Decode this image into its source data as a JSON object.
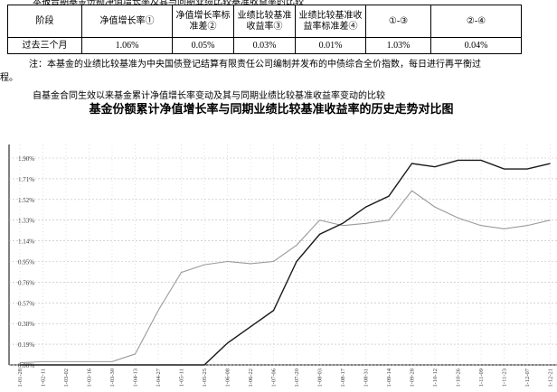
{
  "document": {
    "caption": "本报告期基金份额净值增长率及其与同期业绩比较基准收益率的比较",
    "table": {
      "header": [
        "阶段",
        "净值增长率①",
        "净值增长率标准差②",
        "业绩比较基准收益率③",
        "业绩比较基准收益率标准差④",
        "①-③",
        "②-④"
      ],
      "rows": [
        [
          "过去三个月",
          "1.06%",
          "0.05%",
          "0.03%",
          "0.01%",
          "1.03%",
          "0.04%"
        ]
      ]
    },
    "note": "注：本基金的业绩比较基准为中央国债登记结算有限责任公司编制并发布的中债综合全价指数，每日进行再平衡过",
    "note_tail": "程。",
    "section": "自基金合同生效以来基金累计净值增长率变动及其与同期业绩比较基准收益率变动的比较"
  },
  "chart_data": {
    "type": "line",
    "title": "基金份额累计净值增长率与同期业绩比较基准收益率的历史走势对比图",
    "categories": [
      "1-01-28",
      "1-02-11",
      "1-03-02",
      "1-03-16",
      "1-03-30",
      "1-04-13",
      "1-04-27",
      "1-05-11",
      "1-05-25",
      "1-06-08",
      "1-06-22",
      "1-07-06",
      "1-07-20",
      "1-08-03",
      "1-08-17",
      "1-08-31",
      "1-09-14",
      "1-09-28",
      "1-10-12",
      "1-10-26",
      "1-11-09",
      "1-11-23",
      "1-12-07",
      "1-12-21"
    ],
    "series": [
      {
        "color": "#9a9a9a",
        "values": [
          0.02,
          0.03,
          0.03,
          0.03,
          0.03,
          0.1,
          0.5,
          0.85,
          0.92,
          0.95,
          0.93,
          0.95,
          1.1,
          1.33,
          1.28,
          1.3,
          1.33,
          1.6,
          1.45,
          1.35,
          1.28,
          1.25,
          1.28,
          1.33
        ]
      },
      {
        "color": "#1a1a1a",
        "values": [
          0,
          0,
          0,
          0,
          0,
          0,
          0,
          0,
          0,
          0.2,
          0.35,
          0.5,
          0.95,
          1.2,
          1.3,
          1.45,
          1.55,
          1.85,
          1.82,
          1.88,
          1.88,
          1.8,
          1.8,
          1.85
        ]
      }
    ],
    "ylim": [
      0,
      1.9
    ],
    "yticks": [
      {
        "value": 0,
        "label": "0.00%"
      },
      {
        "value": 0.19,
        "label": "0.19%"
      },
      {
        "value": 0.38,
        "label": "0.38%"
      },
      {
        "value": 0.57,
        "label": "0.57%"
      },
      {
        "value": 0.76,
        "label": "0.76%"
      },
      {
        "value": 0.95,
        "label": "0.95%"
      },
      {
        "value": 1.14,
        "label": "1.14%"
      },
      {
        "value": 1.33,
        "label": "1.33%"
      },
      {
        "value": 1.52,
        "label": "1.52%"
      },
      {
        "value": 1.71,
        "label": "1.71%"
      },
      {
        "value": 1.9,
        "label": "1.90%"
      }
    ],
    "grid": true
  }
}
